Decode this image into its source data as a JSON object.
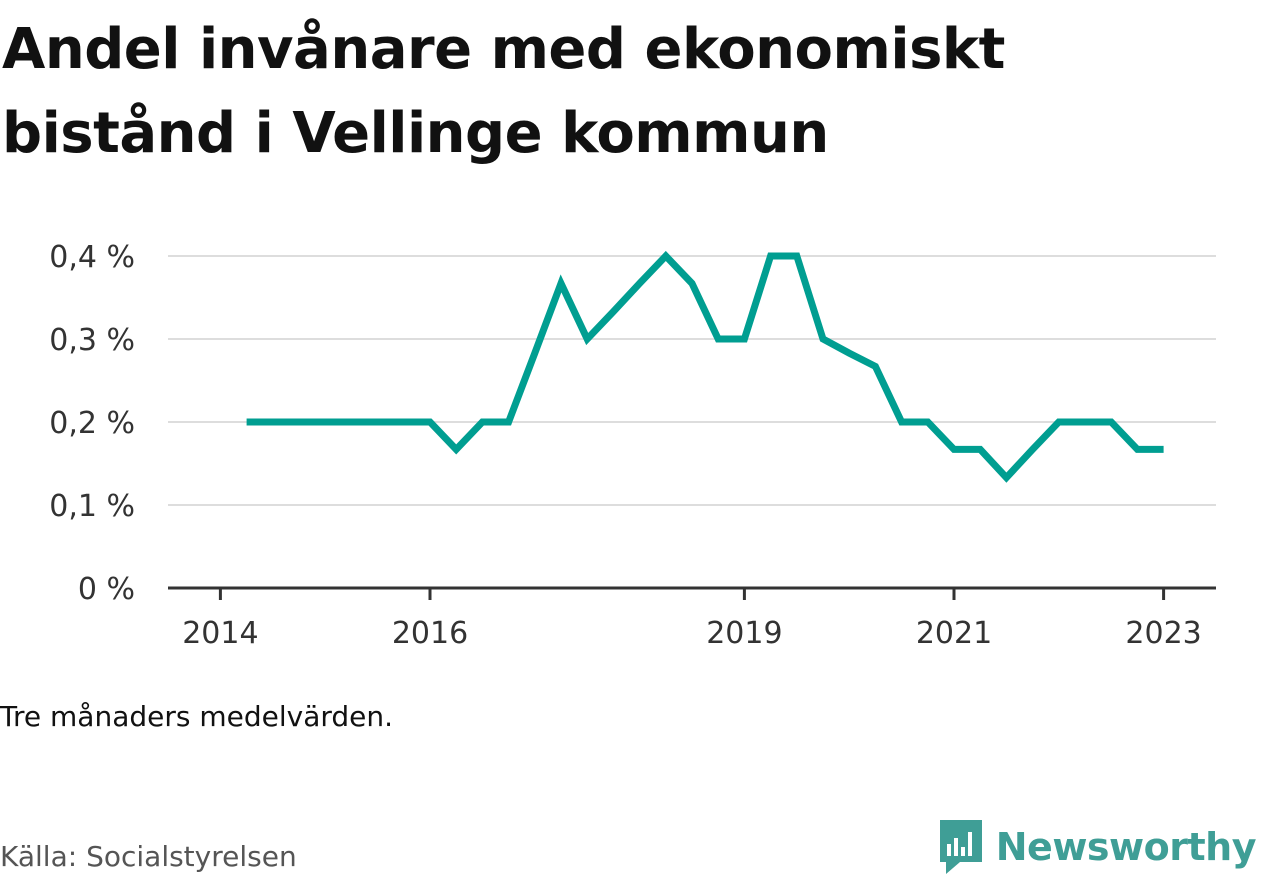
{
  "title": "Andel invånare med ekonomiskt bistånd i Vellinge kommun",
  "note": "Tre månaders medelvärden.",
  "source": "Källa: Socialstyrelsen",
  "brand": {
    "name": "Newsworthy",
    "color": "#3f9e96",
    "icon": "newsworthy-logo-icon"
  },
  "chart_data": {
    "type": "line",
    "line_color": "#009e91",
    "grid": true,
    "ylim": [
      0,
      0.4
    ],
    "y_ticks": [
      {
        "value": 0,
        "label": "0 %"
      },
      {
        "value": 0.1,
        "label": "0,1 %"
      },
      {
        "value": 0.2,
        "label": "0,2 %"
      },
      {
        "value": 0.3,
        "label": "0,3 %"
      },
      {
        "value": 0.4,
        "label": "0,4 %"
      }
    ],
    "x_ticks": [
      "2014",
      "2016",
      "2019",
      "2021",
      "2023"
    ],
    "series": [
      {
        "x": [
          "2014-04",
          "2014-07",
          "2014-10",
          "2015-01",
          "2015-04",
          "2015-07",
          "2015-10",
          "2016-01",
          "2016-04",
          "2016-07",
          "2016-10",
          "2017-01",
          "2017-04",
          "2017-07",
          "2017-10",
          "2018-01",
          "2018-04",
          "2018-07",
          "2018-10",
          "2019-01",
          "2019-04",
          "2019-07",
          "2019-10",
          "2020-01",
          "2020-04",
          "2020-07",
          "2020-10",
          "2021-01",
          "2021-04",
          "2021-07",
          "2021-10",
          "2022-01",
          "2022-04",
          "2022-07",
          "2022-10",
          "2023-01"
        ],
        "values": [
          0.2,
          0.2,
          0.2,
          0.2,
          0.2,
          0.2,
          0.2,
          0.2,
          0.167,
          0.2,
          0.2,
          0.283,
          0.367,
          0.3,
          0.333,
          0.367,
          0.4,
          0.367,
          0.3,
          0.3,
          0.4,
          0.4,
          0.3,
          0.283,
          0.267,
          0.2,
          0.2,
          0.167,
          0.167,
          0.133,
          0.167,
          0.2,
          0.2,
          0.2,
          0.167,
          0.167
        ]
      }
    ]
  }
}
